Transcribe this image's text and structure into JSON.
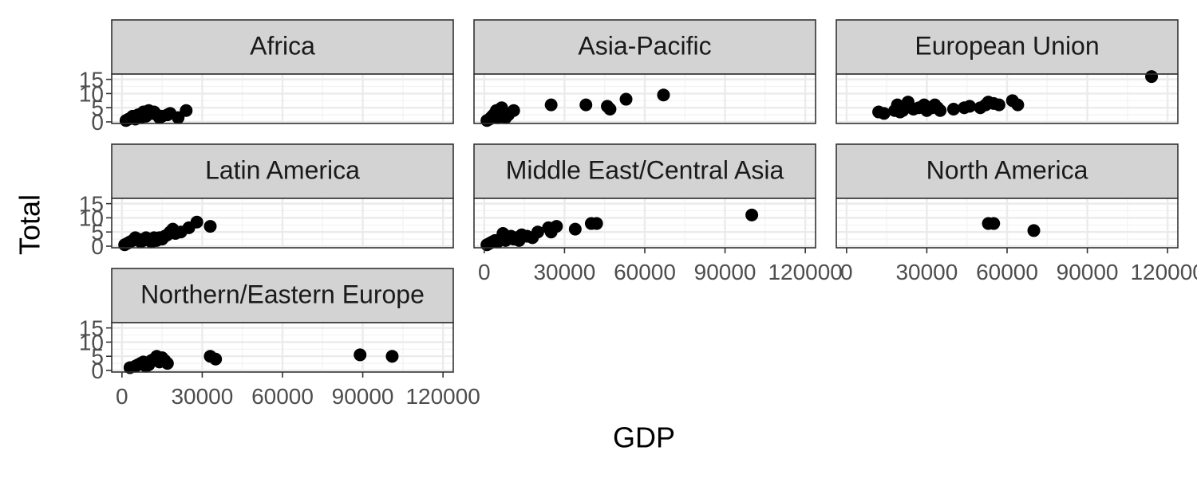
{
  "chart_data": {
    "type": "scatter",
    "xlabel": "GDP",
    "ylabel": "Total",
    "xlim": [
      0,
      120000
    ],
    "ylim": [
      0,
      15
    ],
    "xticks": [
      0,
      30000,
      60000,
      90000,
      120000
    ],
    "xtick_labels": [
      "0",
      "30000",
      "60000",
      "90000",
      "120000"
    ],
    "yticks": [
      0,
      5,
      10,
      15
    ],
    "ytick_labels": [
      "0",
      "5",
      "10",
      "15"
    ],
    "grid": true,
    "facets": [
      {
        "name": "Africa",
        "points": [
          [
            1500,
            0.5
          ],
          [
            2500,
            1
          ],
          [
            3500,
            1.5
          ],
          [
            4000,
            2
          ],
          [
            5000,
            1
          ],
          [
            6000,
            2.5
          ],
          [
            7000,
            1.5
          ],
          [
            8000,
            3.5
          ],
          [
            9000,
            2
          ],
          [
            10000,
            4
          ],
          [
            11000,
            3
          ],
          [
            12000,
            3.5
          ],
          [
            13000,
            2.5
          ],
          [
            14000,
            1.5
          ],
          [
            15000,
            2
          ],
          [
            17000,
            2.5
          ],
          [
            18000,
            3
          ],
          [
            21000,
            1.5
          ],
          [
            24000,
            4
          ]
        ]
      },
      {
        "name": "Asia-Pacific",
        "points": [
          [
            1000,
            0.5
          ],
          [
            2000,
            1
          ],
          [
            2500,
            1.5
          ],
          [
            3000,
            2
          ],
          [
            3500,
            2.5
          ],
          [
            4000,
            3
          ],
          [
            4500,
            4
          ],
          [
            5000,
            1.5
          ],
          [
            5500,
            2
          ],
          [
            6000,
            3
          ],
          [
            6500,
            5
          ],
          [
            7000,
            2
          ],
          [
            8000,
            1.5
          ],
          [
            9000,
            2.5
          ],
          [
            11000,
            4
          ],
          [
            25000,
            6
          ],
          [
            38000,
            6
          ],
          [
            46000,
            5.5
          ],
          [
            47000,
            4.5
          ],
          [
            53000,
            8
          ],
          [
            67000,
            9.5
          ]
        ]
      },
      {
        "name": "European Union",
        "points": [
          [
            12000,
            3.5
          ],
          [
            14000,
            3
          ],
          [
            18000,
            4
          ],
          [
            19000,
            6
          ],
          [
            20000,
            3.5
          ],
          [
            21000,
            4
          ],
          [
            22000,
            5
          ],
          [
            23000,
            7
          ],
          [
            25000,
            4.5
          ],
          [
            27000,
            5
          ],
          [
            29000,
            6
          ],
          [
            30000,
            4
          ],
          [
            32000,
            5
          ],
          [
            33000,
            6
          ],
          [
            34000,
            5
          ],
          [
            35000,
            4
          ],
          [
            40000,
            4.5
          ],
          [
            44000,
            5
          ],
          [
            46000,
            5.5
          ],
          [
            50000,
            5
          ],
          [
            52000,
            6
          ],
          [
            53000,
            7
          ],
          [
            55000,
            6.5
          ],
          [
            57000,
            6
          ],
          [
            62000,
            7.5
          ],
          [
            64000,
            6
          ],
          [
            114000,
            16
          ]
        ]
      },
      {
        "name": "Latin America",
        "points": [
          [
            1000,
            0.5
          ],
          [
            2000,
            1
          ],
          [
            3000,
            1.5
          ],
          [
            4000,
            2
          ],
          [
            5000,
            3
          ],
          [
            6000,
            2.5
          ],
          [
            7000,
            1.5
          ],
          [
            8000,
            2
          ],
          [
            9000,
            3
          ],
          [
            10000,
            2.5
          ],
          [
            11000,
            1.5
          ],
          [
            12000,
            3
          ],
          [
            13000,
            2
          ],
          [
            14000,
            3
          ],
          [
            15000,
            2.5
          ],
          [
            16000,
            3.5
          ],
          [
            17000,
            4
          ],
          [
            18000,
            5
          ],
          [
            19000,
            6
          ],
          [
            20000,
            4.5
          ],
          [
            22000,
            5
          ],
          [
            25000,
            6.5
          ],
          [
            28000,
            8.5
          ],
          [
            33000,
            7
          ]
        ]
      },
      {
        "name": "Middle East/Central Asia",
        "points": [
          [
            1000,
            0.5
          ],
          [
            2000,
            1
          ],
          [
            3000,
            1.5
          ],
          [
            4000,
            2
          ],
          [
            5000,
            1.5
          ],
          [
            6000,
            2.5
          ],
          [
            7000,
            4.5
          ],
          [
            8000,
            2
          ],
          [
            9000,
            3
          ],
          [
            10000,
            3.5
          ],
          [
            11000,
            2.5
          ],
          [
            12000,
            3
          ],
          [
            13000,
            2
          ],
          [
            14000,
            4
          ],
          [
            16000,
            3.5
          ],
          [
            18000,
            3
          ],
          [
            20000,
            5
          ],
          [
            24000,
            6.5
          ],
          [
            25000,
            5
          ],
          [
            27000,
            7
          ],
          [
            34000,
            6
          ],
          [
            40000,
            8
          ],
          [
            42000,
            8
          ],
          [
            100000,
            11
          ]
        ]
      },
      {
        "name": "North America",
        "points": [
          [
            53000,
            8
          ],
          [
            55000,
            8
          ],
          [
            70000,
            5.5
          ]
        ]
      },
      {
        "name": "Northern/Eastern Europe",
        "points": [
          [
            3000,
            1
          ],
          [
            5000,
            1.5
          ],
          [
            6000,
            2
          ],
          [
            7000,
            2.5
          ],
          [
            8000,
            3
          ],
          [
            9000,
            1.5
          ],
          [
            10000,
            2
          ],
          [
            11000,
            3.5
          ],
          [
            12000,
            4
          ],
          [
            13000,
            5
          ],
          [
            14000,
            3
          ],
          [
            15000,
            4.5
          ],
          [
            16000,
            3.5
          ],
          [
            17000,
            2.5
          ],
          [
            33000,
            5
          ],
          [
            35000,
            4
          ],
          [
            89000,
            5.5
          ],
          [
            101000,
            5
          ]
        ]
      }
    ]
  }
}
